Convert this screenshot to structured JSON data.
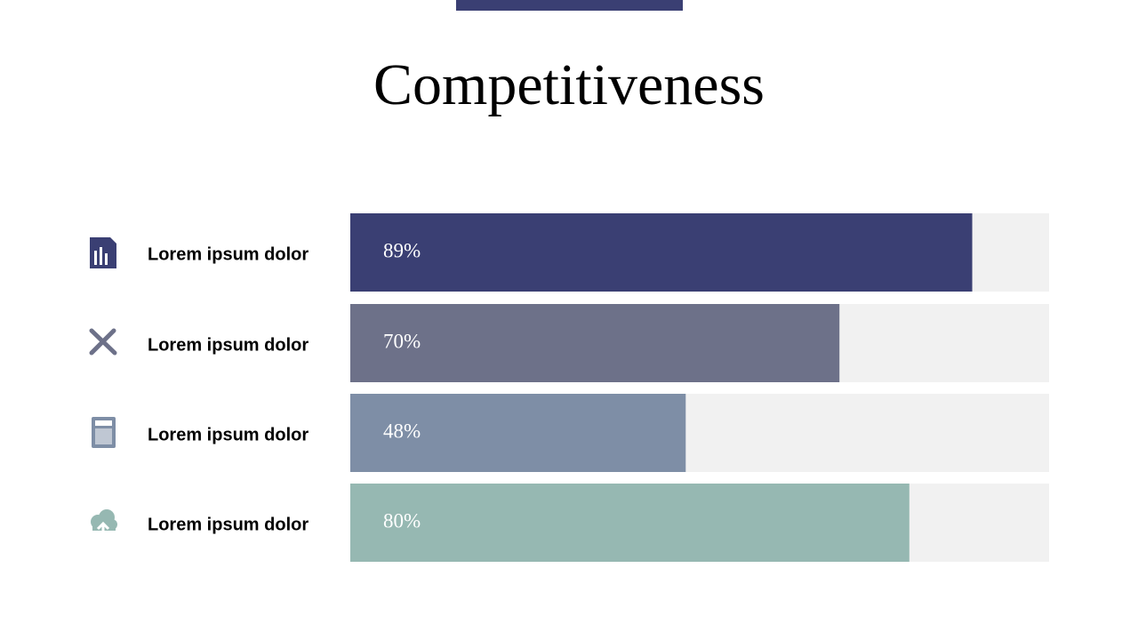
{
  "chart_data": {
    "type": "bar",
    "orientation": "horizontal",
    "title": "Competitiveness",
    "categories": [
      "Lorem ipsum dolor",
      "Lorem ipsum dolor",
      "Lorem ipsum dolor",
      "Lorem ipsum dolor"
    ],
    "values": [
      89,
      70,
      48,
      80
    ],
    "value_labels": [
      "89%",
      "70%",
      "48%",
      "80%"
    ],
    "colors": [
      "#3a3f73",
      "#6d7189",
      "#7e8ea6",
      "#96b8b2"
    ],
    "xlim": [
      0,
      100
    ]
  }
}
